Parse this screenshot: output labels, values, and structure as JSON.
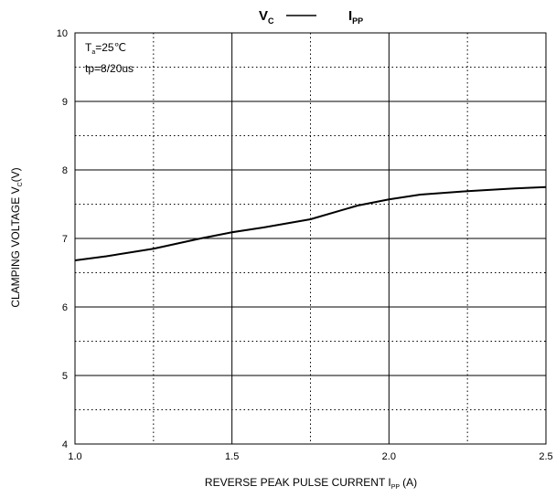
{
  "chart_data": {
    "type": "line",
    "title": {
      "y_symbol": "V",
      "y_sub": "C",
      "x_symbol": "I",
      "x_sub": "PP"
    },
    "y_label": {
      "text": "CLAMPING VOLTAGE  V",
      "sub": "C",
      "unit": "(V)"
    },
    "x_label": {
      "text": "REVERSE PEAK PULSE CURRENT  I",
      "sub": "PP",
      "unit": "(A)"
    },
    "annotations": {
      "temp_symbol": "T",
      "temp_sub": "a",
      "temp_value": "=25℃",
      "pulse": "tp=8/20us"
    },
    "x": [
      1.0,
      1.1,
      1.25,
      1.4,
      1.5,
      1.6,
      1.75,
      1.9,
      2.0,
      2.1,
      2.25,
      2.4,
      2.5
    ],
    "series": [
      {
        "color": "#000000",
        "values": [
          6.68,
          6.74,
          6.85,
          7.0,
          7.09,
          7.16,
          7.28,
          7.48,
          7.57,
          7.64,
          7.69,
          7.73,
          7.75
        ]
      }
    ],
    "xlim": [
      1.0,
      2.5
    ],
    "xticks": [
      {
        "value": 1.0,
        "label": "1.0"
      },
      1.5,
      {
        "value": 2.0,
        "label": "2.0"
      },
      2.5
    ],
    "xminorticks": [
      1.25,
      1.75,
      2.25
    ],
    "ylim": [
      4,
      10
    ],
    "yticks": [
      4,
      5,
      6,
      7,
      8,
      9,
      10
    ],
    "yminorticks": [
      4.5,
      5.5,
      6.5,
      7.5,
      8.5,
      9.5
    ],
    "grid": true
  }
}
